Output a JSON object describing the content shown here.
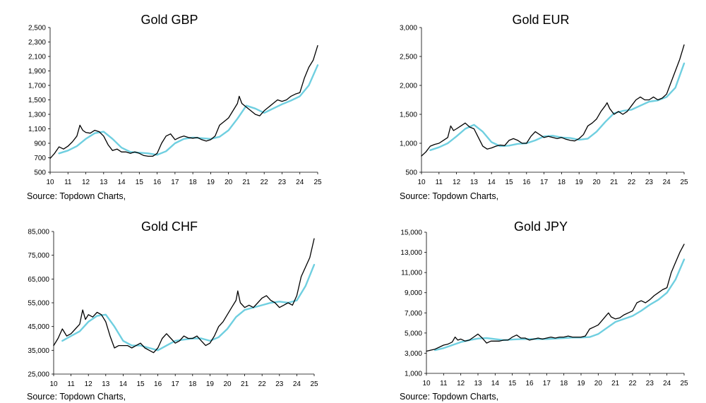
{
  "colors": {
    "price": "#000000",
    "moving_average": "#6fcfe0",
    "axis": "#000000"
  },
  "chart_data": [
    {
      "type": "line",
      "title": "Gold GBP",
      "source": "Source: Topdown Charts,",
      "x_ticks": [
        "10",
        "11",
        "12",
        "13",
        "14",
        "15",
        "16",
        "17",
        "18",
        "19",
        "20",
        "21",
        "22",
        "23",
        "24",
        "25"
      ],
      "xlim": [
        2010,
        2025
      ],
      "y_ticks": [
        "500",
        "700",
        "900",
        "1,100",
        "1,300",
        "1,500",
        "1,700",
        "1,900",
        "2,100",
        "2,300",
        "2,500"
      ],
      "ylim": [
        500,
        2500
      ],
      "grid": false,
      "series": [
        {
          "role": "price",
          "x": [
            2010.0,
            2010.25,
            2010.5,
            2010.75,
            2011.0,
            2011.25,
            2011.5,
            2011.67,
            2011.83,
            2012.0,
            2012.25,
            2012.5,
            2012.75,
            2013.0,
            2013.25,
            2013.5,
            2013.75,
            2014.0,
            2014.25,
            2014.5,
            2014.75,
            2015.0,
            2015.25,
            2015.5,
            2015.75,
            2016.0,
            2016.25,
            2016.5,
            2016.75,
            2017.0,
            2017.25,
            2017.5,
            2017.75,
            2018.0,
            2018.25,
            2018.5,
            2018.75,
            2019.0,
            2019.25,
            2019.5,
            2019.75,
            2020.0,
            2020.25,
            2020.5,
            2020.6,
            2020.75,
            2021.0,
            2021.25,
            2021.5,
            2021.75,
            2022.0,
            2022.25,
            2022.5,
            2022.75,
            2023.0,
            2023.25,
            2023.5,
            2023.75,
            2024.0,
            2024.25,
            2024.5,
            2024.75,
            2025.0
          ],
          "y": [
            690,
            760,
            850,
            820,
            860,
            920,
            1000,
            1150,
            1080,
            1050,
            1040,
            1080,
            1060,
            1000,
            880,
            800,
            820,
            780,
            780,
            760,
            780,
            760,
            730,
            720,
            720,
            760,
            900,
            1000,
            1030,
            950,
            980,
            1000,
            980,
            970,
            980,
            950,
            930,
            950,
            1000,
            1150,
            1200,
            1250,
            1350,
            1450,
            1550,
            1450,
            1400,
            1350,
            1300,
            1280,
            1350,
            1400,
            1450,
            1500,
            1480,
            1500,
            1550,
            1580,
            1600,
            1800,
            1950,
            2050,
            2250
          ]
        },
        {
          "role": "moving_average",
          "x": [
            2010.5,
            2011.0,
            2011.5,
            2012.0,
            2012.5,
            2013.0,
            2013.5,
            2014.0,
            2014.5,
            2015.0,
            2015.5,
            2016.0,
            2016.5,
            2017.0,
            2017.5,
            2018.0,
            2018.5,
            2019.0,
            2019.5,
            2020.0,
            2020.5,
            2021.0,
            2021.5,
            2022.0,
            2022.5,
            2023.0,
            2023.5,
            2024.0,
            2024.5,
            2025.0
          ],
          "y": [
            760,
            800,
            860,
            960,
            1040,
            1060,
            960,
            840,
            780,
            770,
            760,
            740,
            790,
            900,
            960,
            980,
            970,
            960,
            990,
            1080,
            1240,
            1420,
            1380,
            1320,
            1380,
            1440,
            1490,
            1550,
            1700,
            1980
          ]
        }
      ]
    },
    {
      "type": "line",
      "title": "Gold EUR",
      "source": "Source: Topdown Charts,",
      "x_ticks": [
        "10",
        "11",
        "12",
        "13",
        "14",
        "15",
        "16",
        "17",
        "18",
        "19",
        "20",
        "21",
        "22",
        "23",
        "24",
        "25"
      ],
      "xlim": [
        2010,
        2025
      ],
      "y_ticks": [
        "500",
        "1,000",
        "1,500",
        "2,000",
        "2,500",
        "3,000"
      ],
      "ylim": [
        500,
        3000
      ],
      "grid": false,
      "series": [
        {
          "role": "price",
          "x": [
            2010.0,
            2010.25,
            2010.5,
            2010.75,
            2011.0,
            2011.25,
            2011.5,
            2011.67,
            2011.83,
            2012.0,
            2012.25,
            2012.5,
            2012.75,
            2013.0,
            2013.25,
            2013.5,
            2013.75,
            2014.0,
            2014.25,
            2014.5,
            2014.75,
            2015.0,
            2015.25,
            2015.5,
            2015.75,
            2016.0,
            2016.25,
            2016.5,
            2016.75,
            2017.0,
            2017.25,
            2017.5,
            2017.75,
            2018.0,
            2018.25,
            2018.5,
            2018.75,
            2019.0,
            2019.25,
            2019.5,
            2019.75,
            2020.0,
            2020.25,
            2020.5,
            2020.6,
            2020.75,
            2021.0,
            2021.25,
            2021.5,
            2021.75,
            2022.0,
            2022.25,
            2022.5,
            2022.75,
            2023.0,
            2023.25,
            2023.5,
            2023.75,
            2024.0,
            2024.25,
            2024.5,
            2024.75,
            2025.0
          ],
          "y": [
            780,
            850,
            950,
            980,
            1000,
            1050,
            1100,
            1300,
            1220,
            1250,
            1300,
            1350,
            1280,
            1250,
            1100,
            950,
            900,
            920,
            950,
            970,
            960,
            1050,
            1080,
            1050,
            1000,
            1000,
            1120,
            1200,
            1150,
            1100,
            1120,
            1100,
            1080,
            1100,
            1070,
            1050,
            1040,
            1080,
            1150,
            1300,
            1350,
            1420,
            1550,
            1650,
            1700,
            1600,
            1500,
            1550,
            1500,
            1550,
            1650,
            1750,
            1800,
            1750,
            1750,
            1800,
            1750,
            1780,
            1850,
            2050,
            2250,
            2450,
            2700
          ]
        },
        {
          "role": "moving_average",
          "x": [
            2010.5,
            2011.0,
            2011.5,
            2012.0,
            2012.5,
            2013.0,
            2013.5,
            2014.0,
            2014.5,
            2015.0,
            2015.5,
            2016.0,
            2016.5,
            2017.0,
            2017.5,
            2018.0,
            2018.5,
            2019.0,
            2019.5,
            2020.0,
            2020.5,
            2021.0,
            2021.5,
            2022.0,
            2022.5,
            2023.0,
            2023.5,
            2024.0,
            2024.5,
            2025.0
          ],
          "y": [
            880,
            930,
            1000,
            1120,
            1250,
            1320,
            1200,
            1020,
            950,
            960,
            990,
            1000,
            1050,
            1120,
            1130,
            1100,
            1090,
            1060,
            1080,
            1200,
            1370,
            1520,
            1560,
            1580,
            1650,
            1720,
            1740,
            1800,
            1960,
            2380
          ]
        }
      ]
    },
    {
      "type": "line",
      "title": "Gold CHF",
      "source": "Source: Topdown Charts,",
      "x_ticks": [
        "10",
        "11",
        "12",
        "13",
        "14",
        "15",
        "16",
        "17",
        "18",
        "19",
        "20",
        "21",
        "22",
        "23",
        "24",
        "25"
      ],
      "xlim": [
        2010,
        2025
      ],
      "y_ticks": [
        "25,000",
        "35,000",
        "45,000",
        "55,000",
        "65,000",
        "75,000",
        "85,000"
      ],
      "ylim": [
        25000,
        85000
      ],
      "grid": false,
      "series": [
        {
          "role": "price",
          "x": [
            2010.0,
            2010.25,
            2010.5,
            2010.75,
            2011.0,
            2011.25,
            2011.5,
            2011.67,
            2011.83,
            2012.0,
            2012.25,
            2012.5,
            2012.75,
            2013.0,
            2013.25,
            2013.5,
            2013.75,
            2014.0,
            2014.25,
            2014.5,
            2014.75,
            2015.0,
            2015.25,
            2015.5,
            2015.75,
            2016.0,
            2016.25,
            2016.5,
            2016.75,
            2017.0,
            2017.25,
            2017.5,
            2017.75,
            2018.0,
            2018.25,
            2018.5,
            2018.75,
            2019.0,
            2019.25,
            2019.5,
            2019.75,
            2020.0,
            2020.25,
            2020.5,
            2020.6,
            2020.75,
            2021.0,
            2021.25,
            2021.5,
            2021.75,
            2022.0,
            2022.25,
            2022.5,
            2022.75,
            2023.0,
            2023.25,
            2023.5,
            2023.75,
            2024.0,
            2024.25,
            2024.5,
            2024.75,
            2025.0
          ],
          "y": [
            37000,
            40000,
            44000,
            41000,
            42000,
            44000,
            46000,
            52000,
            48000,
            50000,
            49000,
            51000,
            50000,
            47000,
            41000,
            36000,
            37000,
            37000,
            37000,
            36000,
            37000,
            38000,
            36000,
            35000,
            34000,
            36000,
            40000,
            42000,
            40000,
            38000,
            39000,
            41000,
            40000,
            40000,
            41000,
            39000,
            37000,
            38000,
            41000,
            45000,
            47000,
            50000,
            53000,
            56000,
            60000,
            55000,
            53000,
            54000,
            53000,
            55000,
            57000,
            58000,
            56000,
            55000,
            53000,
            54000,
            55000,
            54000,
            58000,
            66000,
            70000,
            74000,
            82000
          ]
        },
        {
          "role": "moving_average",
          "x": [
            2010.5,
            2011.0,
            2011.5,
            2012.0,
            2012.5,
            2013.0,
            2013.5,
            2014.0,
            2014.5,
            2015.0,
            2015.5,
            2016.0,
            2016.5,
            2017.0,
            2017.5,
            2018.0,
            2018.5,
            2019.0,
            2019.5,
            2020.0,
            2020.5,
            2021.0,
            2021.5,
            2022.0,
            2022.5,
            2023.0,
            2023.5,
            2024.0,
            2024.5,
            2025.0
          ],
          "y": [
            39000,
            41000,
            43000,
            47000,
            49500,
            50000,
            45000,
            39000,
            37000,
            37000,
            36000,
            35000,
            37000,
            39000,
            39500,
            40000,
            40000,
            39000,
            40500,
            44000,
            49000,
            52000,
            53000,
            54000,
            55000,
            55500,
            55000,
            56000,
            62000,
            71000
          ]
        }
      ]
    },
    {
      "type": "line",
      "title": "Gold JPY",
      "source": "Source: Topdown Charts,",
      "x_ticks": [
        "10",
        "11",
        "12",
        "13",
        "14",
        "15",
        "16",
        "17",
        "18",
        "19",
        "20",
        "21",
        "22",
        "23",
        "24",
        "25"
      ],
      "xlim": [
        2010,
        2025
      ],
      "y_ticks": [
        "1,000",
        "3,000",
        "5,000",
        "7,000",
        "9,000",
        "11,000",
        "13,000",
        "15,000"
      ],
      "ylim": [
        1000,
        15000
      ],
      "grid": false,
      "series": [
        {
          "role": "price",
          "x": [
            2010.0,
            2010.25,
            2010.5,
            2010.75,
            2011.0,
            2011.25,
            2011.5,
            2011.67,
            2011.83,
            2012.0,
            2012.25,
            2012.5,
            2012.75,
            2013.0,
            2013.25,
            2013.5,
            2013.75,
            2014.0,
            2014.25,
            2014.5,
            2014.75,
            2015.0,
            2015.25,
            2015.5,
            2015.75,
            2016.0,
            2016.25,
            2016.5,
            2016.75,
            2017.0,
            2017.25,
            2017.5,
            2017.75,
            2018.0,
            2018.25,
            2018.5,
            2018.75,
            2019.0,
            2019.25,
            2019.5,
            2019.75,
            2020.0,
            2020.25,
            2020.5,
            2020.6,
            2020.75,
            2021.0,
            2021.25,
            2021.5,
            2021.75,
            2022.0,
            2022.25,
            2022.5,
            2022.75,
            2023.0,
            2023.25,
            2023.5,
            2023.75,
            2024.0,
            2024.25,
            2024.5,
            2024.75,
            2025.0
          ],
          "y": [
            3200,
            3300,
            3400,
            3600,
            3800,
            3900,
            4100,
            4600,
            4300,
            4400,
            4200,
            4300,
            4600,
            4900,
            4500,
            4000,
            4200,
            4200,
            4200,
            4300,
            4300,
            4600,
            4800,
            4500,
            4500,
            4300,
            4400,
            4500,
            4400,
            4500,
            4600,
            4500,
            4600,
            4600,
            4700,
            4600,
            4600,
            4600,
            4700,
            5400,
            5600,
            5800,
            6300,
            6800,
            7000,
            6600,
            6400,
            6500,
            6800,
            7000,
            7200,
            8000,
            8200,
            8000,
            8300,
            8700,
            9000,
            9300,
            9500,
            11000,
            12000,
            13000,
            13800
          ]
        },
        {
          "role": "moving_average",
          "x": [
            2010.5,
            2011.0,
            2011.5,
            2012.0,
            2012.5,
            2013.0,
            2013.5,
            2014.0,
            2014.5,
            2015.0,
            2015.5,
            2016.0,
            2016.5,
            2017.0,
            2017.5,
            2018.0,
            2018.5,
            2019.0,
            2019.5,
            2020.0,
            2020.5,
            2021.0,
            2021.5,
            2022.0,
            2022.5,
            2023.0,
            2023.5,
            2024.0,
            2024.5,
            2025.0
          ],
          "y": [
            3300,
            3500,
            3800,
            4100,
            4300,
            4450,
            4500,
            4400,
            4300,
            4350,
            4400,
            4400,
            4400,
            4400,
            4450,
            4500,
            4550,
            4550,
            4600,
            4900,
            5500,
            6100,
            6400,
            6700,
            7200,
            7800,
            8300,
            9000,
            10300,
            12300
          ]
        }
      ]
    }
  ]
}
